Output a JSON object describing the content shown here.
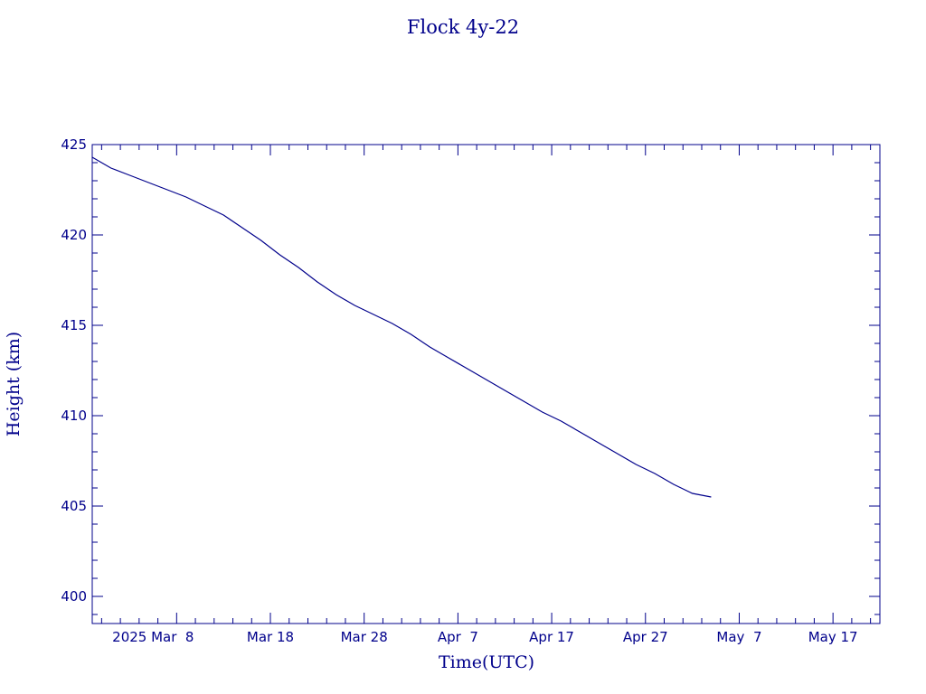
{
  "chart_data": {
    "type": "line",
    "title": "Flock 4y-22",
    "xlabel": "Time(UTC)",
    "ylabel": "Height (km)",
    "ylim": [
      398.5,
      425
    ],
    "xlim": [
      "2025-02-27",
      "2025-05-22"
    ],
    "grid": false,
    "color": "#00008b",
    "yticks": [
      "400",
      "405",
      "410",
      "415",
      "420",
      "425"
    ],
    "xticks": [
      {
        "date": "2025-03-08",
        "label": "2025 Mar  8"
      },
      {
        "date": "2025-03-18",
        "label": "Mar 18"
      },
      {
        "date": "2025-03-28",
        "label": "Mar 28"
      },
      {
        "date": "2025-04-07",
        "label": "Apr  7"
      },
      {
        "date": "2025-04-17",
        "label": "Apr 17"
      },
      {
        "date": "2025-04-27",
        "label": "Apr 27"
      },
      {
        "date": "2025-05-07",
        "label": "May  7"
      },
      {
        "date": "2025-05-17",
        "label": "May 17"
      }
    ],
    "series": [
      {
        "x": [
          "2025-02-27",
          "2025-03-01",
          "2025-03-03",
          "2025-03-05",
          "2025-03-07",
          "2025-03-09",
          "2025-03-11",
          "2025-03-13",
          "2025-03-15",
          "2025-03-17",
          "2025-03-19",
          "2025-03-21",
          "2025-03-23",
          "2025-03-25",
          "2025-03-27",
          "2025-03-29",
          "2025-03-31",
          "2025-04-02",
          "2025-04-04",
          "2025-04-06",
          "2025-04-08",
          "2025-04-10",
          "2025-04-12",
          "2025-04-14",
          "2025-04-16",
          "2025-04-18",
          "2025-04-20",
          "2025-04-22",
          "2025-04-24",
          "2025-04-26",
          "2025-04-28",
          "2025-04-30",
          "2025-05-02",
          "2025-05-04"
        ],
        "y": [
          424.3,
          423.7,
          423.3,
          422.9,
          422.5,
          422.1,
          421.6,
          421.1,
          420.4,
          419.7,
          418.9,
          418.2,
          417.4,
          416.7,
          416.1,
          415.6,
          415.1,
          414.5,
          413.8,
          413.2,
          412.6,
          412.0,
          411.4,
          410.8,
          410.2,
          409.7,
          409.1,
          408.5,
          407.9,
          407.3,
          406.8,
          406.2,
          405.7,
          405.5
        ]
      }
    ]
  }
}
